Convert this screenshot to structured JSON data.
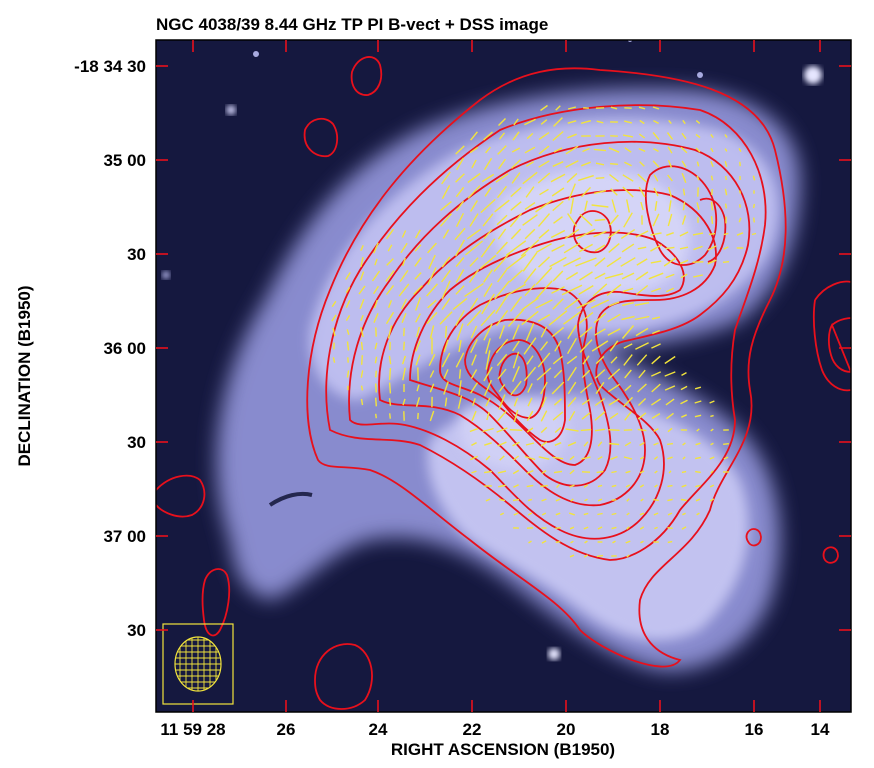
{
  "title": "NGC 4038/39 8.44 GHz TP PI B-vect + DSS image",
  "axes": {
    "xlabel": "RIGHT ASCENSION (B1950)",
    "ylabel": "DECLINATION (B1950)",
    "x_ticks": [
      {
        "label": "11 59 28"
      },
      {
        "label": "26"
      },
      {
        "label": "24"
      },
      {
        "label": "22"
      },
      {
        "label": "20"
      },
      {
        "label": "18"
      },
      {
        "label": "16"
      },
      {
        "label": "14"
      }
    ],
    "y_ticks": [
      {
        "label": "-18 34 30"
      },
      {
        "label": "35 00"
      },
      {
        "label": "30"
      },
      {
        "label": "36 00"
      },
      {
        "label": "30"
      },
      {
        "label": "37 00"
      },
      {
        "label": "30"
      }
    ]
  },
  "colors": {
    "background": "#15183f",
    "galaxy": "#b9b9f0",
    "contour": "#e8101c",
    "vector": "#f2e43c",
    "beam": "#f2e43c"
  },
  "overlays": {
    "contours": "total-intensity",
    "vectors": "magnetic-field",
    "beam": "restoring-beam"
  }
}
